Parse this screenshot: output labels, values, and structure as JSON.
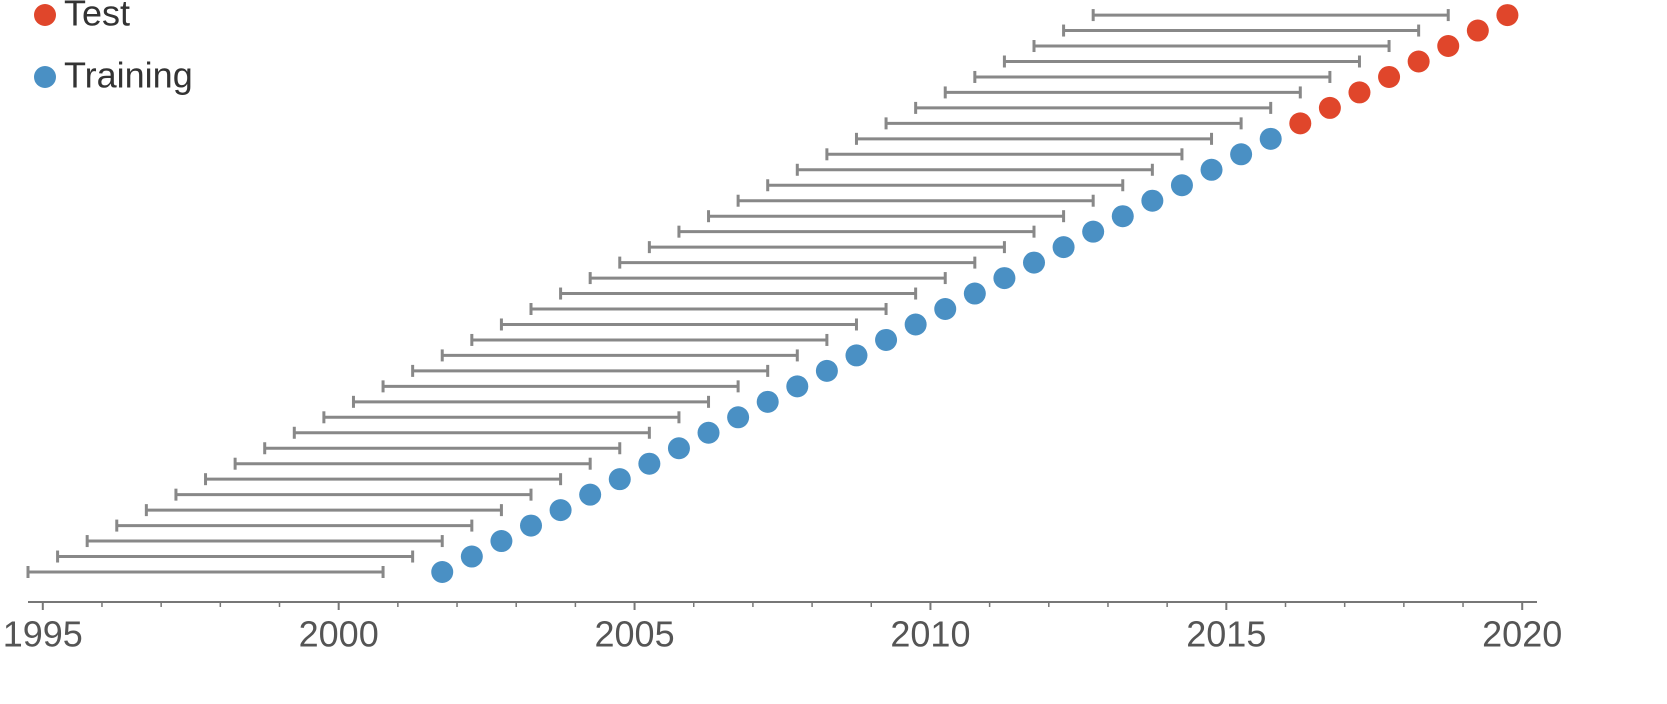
{
  "chart_data": {
    "type": "rolling-window",
    "series": [
      {
        "name": "Training",
        "color": "#4a90c4",
        "values": [
          2001.75,
          2002.25,
          2002.75,
          2003.25,
          2003.75,
          2004.25,
          2004.75,
          2005.25,
          2005.75,
          2006.25,
          2006.75,
          2007.25,
          2007.75,
          2008.25,
          2008.75,
          2009.25,
          2009.75,
          2010.25,
          2010.75,
          2011.25,
          2011.75,
          2012.25,
          2012.75,
          2013.25,
          2013.75,
          2014.25,
          2014.75,
          2015.25,
          2015.75
        ]
      },
      {
        "name": "Test",
        "color": "#e0462b",
        "values": [
          2016.25,
          2016.75,
          2017.25,
          2017.75,
          2018.25,
          2018.75,
          2019.25,
          2019.75
        ]
      }
    ],
    "window_start": [
      1994.75,
      1995.25,
      1995.75,
      1996.25,
      1996.75,
      1997.25,
      1997.75,
      1998.25,
      1998.75,
      1999.25,
      1999.75,
      2000.25,
      2000.75,
      2001.25,
      2001.75,
      2002.25,
      2002.75,
      2003.25,
      2003.75,
      2004.25,
      2004.75,
      2005.25,
      2005.75,
      2006.25,
      2006.75,
      2007.25,
      2007.75,
      2008.25,
      2008.75,
      2009.25,
      2009.75,
      2010.25,
      2010.75,
      2011.25,
      2011.75,
      2012.25,
      2012.75
    ],
    "window_end": [
      2000.75,
      2001.25,
      2001.75,
      2002.25,
      2002.75,
      2003.25,
      2003.75,
      2004.25,
      2004.75,
      2005.25,
      2005.75,
      2006.25,
      2006.75,
      2007.25,
      2007.75,
      2008.25,
      2008.75,
      2009.25,
      2009.75,
      2010.25,
      2010.75,
      2011.25,
      2011.75,
      2012.25,
      2012.75,
      2013.25,
      2013.75,
      2014.25,
      2014.75,
      2015.25,
      2015.75,
      2016.25,
      2016.75,
      2017.25,
      2017.75,
      2018.25,
      2018.75
    ],
    "window_color": "#888888",
    "xlim": [
      1994.75,
      2020.25
    ],
    "xticks": [
      1995,
      2000,
      2005,
      2010,
      2015,
      2020
    ],
    "xminorticks": [
      1996,
      1997,
      1998,
      1999,
      2001,
      2002,
      2003,
      2004,
      2006,
      2007,
      2008,
      2009,
      2011,
      2012,
      2013,
      2014,
      2016,
      2017,
      2018,
      2019
    ],
    "legend": "top-left"
  }
}
